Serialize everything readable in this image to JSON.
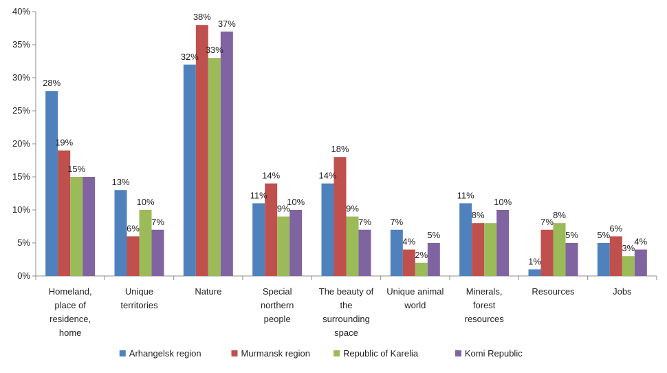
{
  "chart_data": {
    "type": "bar",
    "title": "",
    "xlabel": "",
    "ylabel": "",
    "ylim": [
      0,
      40
    ],
    "ytick_step": 5,
    "ytick_suffix": "%",
    "grid": false,
    "legend_position": "bottom",
    "categories": [
      [
        "Homeland,",
        "place of",
        "residence,",
        "home"
      ],
      [
        "Unique",
        "territories"
      ],
      [
        "Nature"
      ],
      [
        "Special",
        "northern",
        "people"
      ],
      [
        "The beauty of",
        "the",
        "surrounding",
        "space"
      ],
      [
        "Unique animal",
        "world"
      ],
      [
        "Minerals,",
        "forest",
        "resources"
      ],
      [
        "Resources"
      ],
      [
        "Jobs"
      ]
    ],
    "series": [
      {
        "name": "Arhangelsk region",
        "color": "#4f81bd",
        "values": [
          28,
          13,
          32,
          11,
          14,
          7,
          11,
          1,
          5
        ],
        "labels": [
          "28%",
          "13%",
          "32%",
          "11%",
          "14%",
          "7%",
          "11%",
          "1%",
          "5%"
        ]
      },
      {
        "name": "Murmansk region",
        "color": "#c0504d",
        "values": [
          19,
          6,
          38,
          14,
          18,
          4,
          8,
          7,
          6
        ],
        "labels": [
          "19%",
          "6%",
          "38%",
          "14%",
          "18%",
          "4%",
          "8%",
          "7%",
          "6%"
        ]
      },
      {
        "name": "Republic of Karelia",
        "color": "#9bbb59",
        "values": [
          15,
          10,
          33,
          9,
          9,
          2,
          8,
          8,
          3
        ],
        "labels": [
          "15%",
          "10%",
          "33%",
          "9%",
          "9%",
          "2%",
          "",
          "8%",
          "3%"
        ]
      },
      {
        "name": "Komi Republic",
        "color": "#8064a2",
        "values": [
          15,
          7,
          37,
          10,
          7,
          5,
          10,
          5,
          4
        ],
        "labels": [
          "",
          "7%",
          "37%",
          "10%",
          "7%",
          "5%",
          "10%",
          "5%",
          "4%"
        ]
      }
    ]
  }
}
